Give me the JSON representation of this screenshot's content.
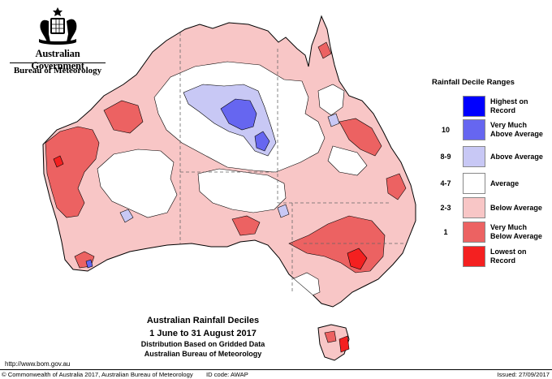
{
  "branding": {
    "government": "Australian Government",
    "bureau": "Bureau of Meteorology"
  },
  "colors": {
    "highest": "#0000ff",
    "very_much_above": "#6666f0",
    "above": "#c8c8f5",
    "average": "#ffffff",
    "below": "#f8c6c6",
    "very_much_below": "#ec6262",
    "lowest": "#f42020",
    "border": "#888888"
  },
  "legend": {
    "title": "Rainfall Decile Ranges",
    "items": [
      {
        "range": "",
        "label_line1": "Highest on",
        "label_line2": "Record",
        "color": "#0000ff"
      },
      {
        "range": "10",
        "label_line1": "Very Much",
        "label_line2": "Above Average",
        "color": "#6666f0"
      },
      {
        "range": "8-9",
        "label_line1": "Above Average",
        "label_line2": "",
        "color": "#c8c8f5"
      },
      {
        "range": "4-7",
        "label_line1": "Average",
        "label_line2": "",
        "color": "#ffffff"
      },
      {
        "range": "2-3",
        "label_line1": "Below Average",
        "label_line2": "",
        "color": "#f8c6c6"
      },
      {
        "range": "1",
        "label_line1": "Very Much",
        "label_line2": "Below Average",
        "color": "#ec6262"
      },
      {
        "range": "",
        "label_line1": "Lowest on",
        "label_line2": "Record",
        "color": "#f42020"
      }
    ]
  },
  "caption": {
    "title": "Australian Rainfall Deciles",
    "period": "1 June to 31 August 2017",
    "method": "Distribution Based on Gridded Data",
    "org": "Australian Bureau of Meteorology"
  },
  "url": "http://www.bom.gov.au",
  "footer": {
    "copyright": "© Commonwealth of Australia 2017, Australian Bureau of Meteorology",
    "id_code": "ID code: AWAP",
    "issued": "Issued: 27/09/2017"
  }
}
